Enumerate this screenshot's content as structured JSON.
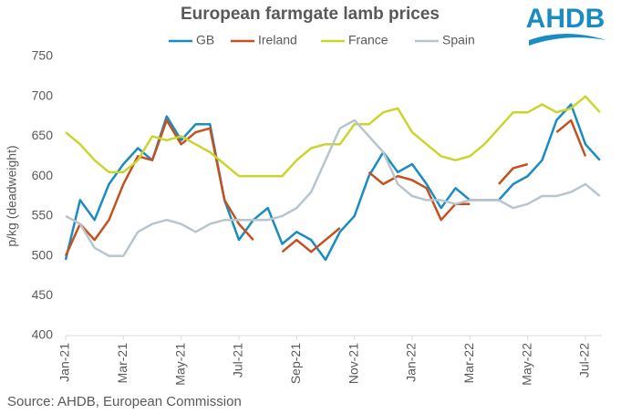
{
  "logo": "AHDB",
  "source": "Source: AHDB, European Commission",
  "chart_data": {
    "type": "line",
    "title": "European farmgate lamb prices",
    "y_label": "p/kg (deadweight)",
    "categories": [
      "Jan-21",
      null,
      null,
      null,
      "Mar-21",
      null,
      null,
      null,
      "May-21",
      null,
      null,
      null,
      "Jul-21",
      null,
      null,
      null,
      "Sep-21",
      null,
      null,
      null,
      "Nov-21",
      null,
      null,
      null,
      "Jan-22",
      null,
      null,
      null,
      "Mar-22",
      null,
      null,
      null,
      "May-22",
      null,
      null,
      null,
      "Jul-22",
      null
    ],
    "ylim": [
      400,
      750
    ],
    "yticks": [
      400,
      450,
      500,
      550,
      600,
      650,
      700,
      750
    ],
    "grid": false,
    "legend": "top",
    "series": [
      {
        "name": "GB",
        "color": "#1a8cc1",
        "values": [
          495,
          570,
          545,
          590,
          615,
          635,
          620,
          675,
          645,
          665,
          665,
          570,
          520,
          545,
          560,
          515,
          530,
          520,
          495,
          530,
          550,
          600,
          630,
          605,
          615,
          590,
          560,
          585,
          570,
          570,
          570,
          590,
          600,
          620,
          670,
          690,
          640,
          620
        ]
      },
      {
        "name": "Ireland",
        "color": "#c5511f",
        "values": [
          500,
          540,
          520,
          545,
          590,
          625,
          620,
          670,
          640,
          655,
          660,
          570,
          540,
          520,
          null,
          505,
          520,
          505,
          520,
          535,
          null,
          605,
          590,
          600,
          595,
          585,
          545,
          565,
          565,
          null,
          590,
          610,
          615,
          null,
          655,
          670,
          625,
          null
        ]
      },
      {
        "name": "France",
        "color": "#c9d52b",
        "values": [
          655,
          640,
          620,
          605,
          605,
          620,
          650,
          645,
          650,
          640,
          630,
          615,
          600,
          600,
          600,
          600,
          620,
          635,
          640,
          640,
          665,
          665,
          680,
          685,
          655,
          640,
          625,
          620,
          625,
          640,
          660,
          680,
          680,
          690,
          680,
          685,
          700,
          680
        ]
      },
      {
        "name": "Spain",
        "color": "#b9c5cd",
        "values": [
          550,
          540,
          510,
          500,
          500,
          530,
          540,
          545,
          540,
          530,
          540,
          545,
          545,
          545,
          545,
          550,
          560,
          580,
          620,
          660,
          670,
          650,
          630,
          590,
          575,
          570,
          570,
          565,
          570,
          570,
          570,
          560,
          565,
          575,
          575,
          580,
          590,
          575
        ]
      }
    ]
  }
}
